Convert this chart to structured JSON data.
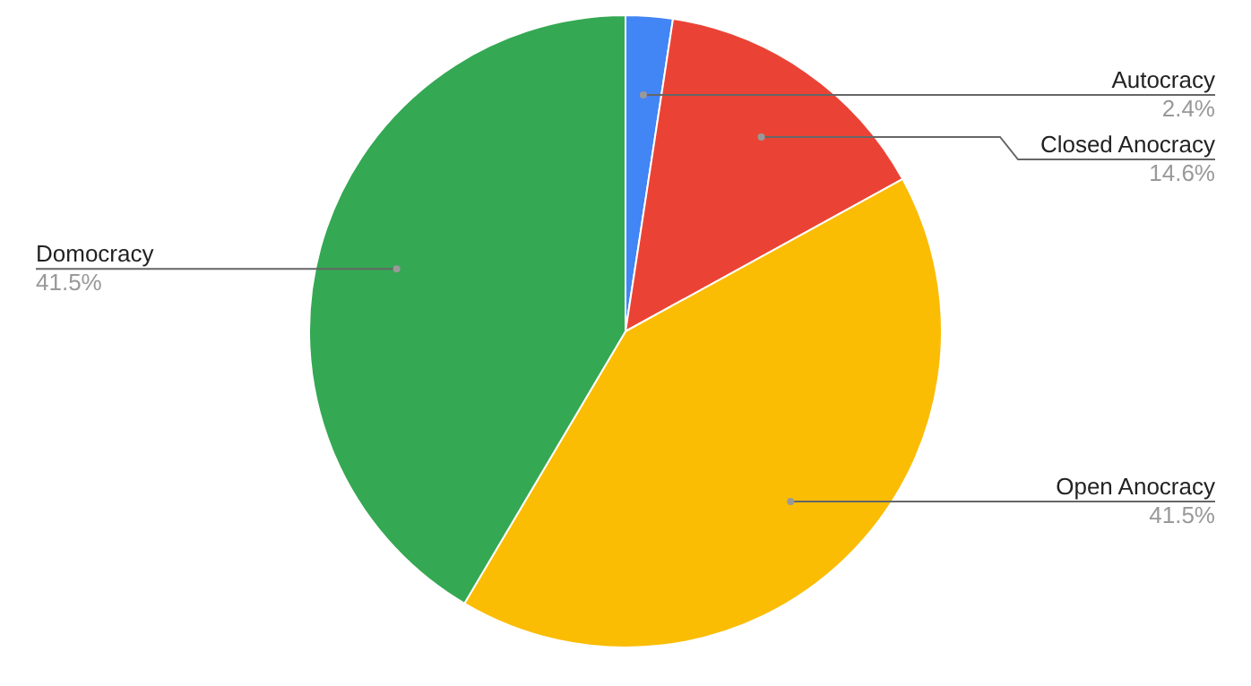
{
  "chart_data": {
    "type": "pie",
    "categories": [
      "Autocracy",
      "Closed Anocracy",
      "Open Anocracy",
      "Domocracy"
    ],
    "values": [
      2.4,
      14.6,
      41.5,
      41.5
    ],
    "colors": [
      "#4285f4",
      "#ea4335",
      "#fbbc04",
      "#34a853"
    ],
    "value_labels": [
      "2.4%",
      "14.6%",
      "41.5%",
      "41.5%"
    ],
    "legend": false
  }
}
